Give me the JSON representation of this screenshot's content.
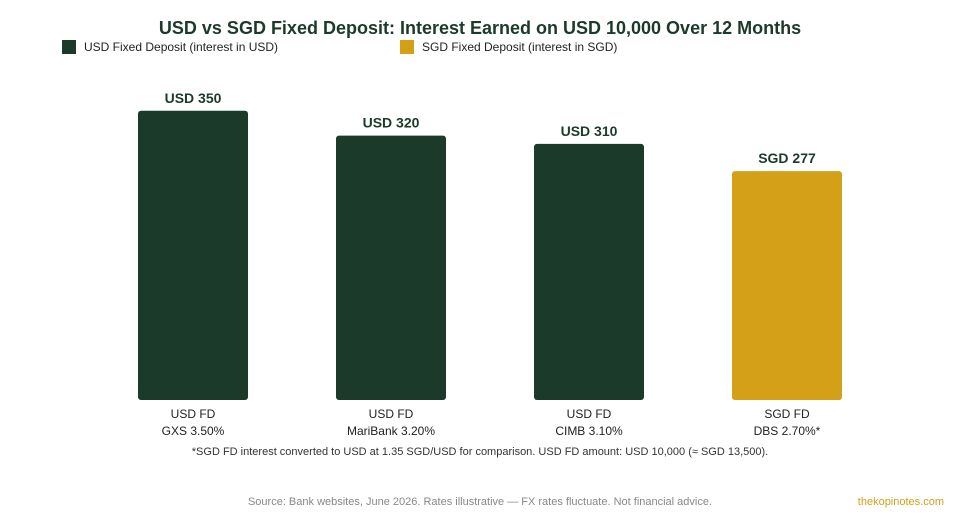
{
  "colors": {
    "usd": "#1b3a2a",
    "sgd": "#d4a017"
  },
  "chart_data": {
    "type": "bar",
    "title": "USD vs SGD Fixed Deposit: Interest Earned on USD 10,000 Over 12 Months",
    "legend": [
      {
        "name": "USD Fixed Deposit (interest in USD)",
        "color": "#1b3a2a"
      },
      {
        "name": "SGD Fixed Deposit (interest in SGD)",
        "color": "#d4a017"
      }
    ],
    "legend_placement": "top-left",
    "grid": false,
    "ylim": [
      0,
      380
    ],
    "bars": [
      {
        "category": [
          "USD FD",
          "GXS 3.50%"
        ],
        "value": 350,
        "label": "USD 350",
        "series": "usd"
      },
      {
        "category": [
          "USD FD",
          "MariBank 3.20%"
        ],
        "value": 320,
        "label": "USD 320",
        "series": "usd"
      },
      {
        "category": [
          "USD FD",
          "CIMB 3.10%"
        ],
        "value": 310,
        "label": "USD 310",
        "series": "usd"
      },
      {
        "category": [
          "SGD FD",
          "DBS 2.70%*"
        ],
        "value": 277,
        "label": "SGD 277",
        "series": "sgd"
      }
    ]
  },
  "footnote": "*SGD FD interest converted to USD at 1.35 SGD/USD for comparison. USD FD amount: USD 10,000 (≈ SGD 13,500).",
  "source": "Source: Bank websites, June 2026. Rates illustrative — FX rates fluctuate. Not financial advice.",
  "brand": "thekopinotes.com"
}
